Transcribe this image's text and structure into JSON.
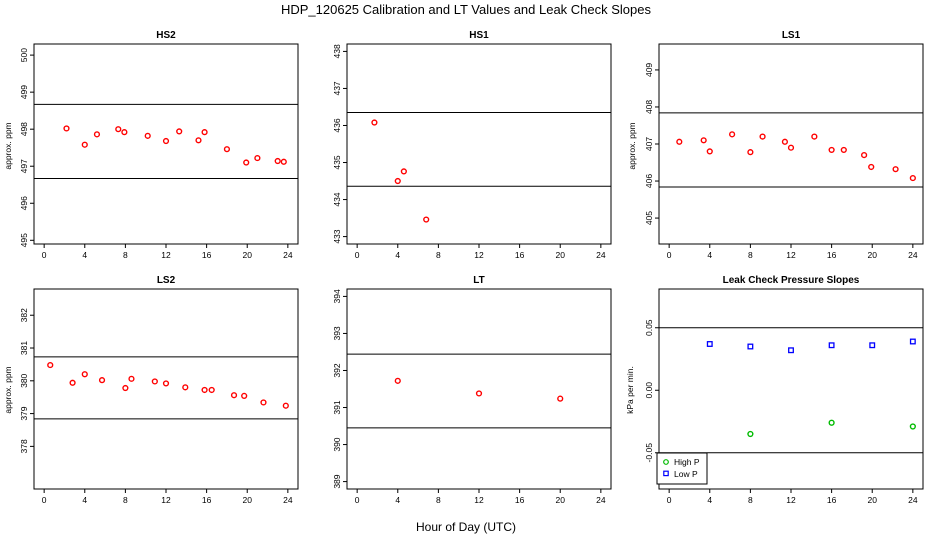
{
  "figure": {
    "title": "HDP_120625  Calibration and LT Values and Leak Check Slopes",
    "xlabel": "Hour of Day (UTC)"
  },
  "colors": {
    "cal": "#ff0000",
    "high": "#00bb00",
    "low": "#0000ff",
    "axis": "#000000"
  },
  "chart_data": [
    {
      "type": "scatter",
      "title": "HS2",
      "ylabel": "approx. ppm",
      "xlim": [
        -1,
        25
      ],
      "ylim": [
        494.9,
        500.3
      ],
      "xticks": [
        "0",
        "4",
        "8",
        "12",
        "16",
        "20",
        "24"
      ],
      "yticks": [
        "495",
        "496",
        "497",
        "498",
        "499",
        "500"
      ],
      "hlines": [
        496.67,
        498.67
      ],
      "series": [
        {
          "name": "cal",
          "x": [
            2.2,
            4,
            5.2,
            7.3,
            7.9,
            10.2,
            12,
            13.3,
            15.2,
            15.8,
            18,
            19.9,
            21,
            23,
            23.6
          ],
          "y": [
            498.02,
            497.58,
            497.86,
            498,
            497.92,
            497.82,
            497.68,
            497.94,
            497.7,
            497.92,
            497.46,
            497.1,
            497.22,
            497.14,
            497.12
          ]
        }
      ]
    },
    {
      "type": "scatter",
      "title": "HS1",
      "ylabel": "",
      "xlim": [
        -1,
        25
      ],
      "ylim": [
        432.8,
        438.2
      ],
      "xticks": [
        "0",
        "4",
        "8",
        "12",
        "16",
        "20",
        "24"
      ],
      "yticks": [
        "433",
        "434",
        "435",
        "436",
        "437",
        "438"
      ],
      "hlines": [
        434.36,
        436.35
      ],
      "series": [
        {
          "name": "cal",
          "x": [
            1.7,
            4,
            4.6,
            6.8
          ],
          "y": [
            436.08,
            434.5,
            434.76,
            433.46
          ]
        }
      ]
    },
    {
      "type": "scatter",
      "title": "LS1",
      "ylabel": "approx. ppm",
      "xlim": [
        -1,
        25
      ],
      "ylim": [
        404.3,
        409.7
      ],
      "xticks": [
        "0",
        "4",
        "8",
        "12",
        "16",
        "20",
        "24"
      ],
      "yticks": [
        "405",
        "406",
        "407",
        "408",
        "409"
      ],
      "hlines": [
        405.84,
        407.84
      ],
      "series": [
        {
          "name": "cal",
          "x": [
            1,
            3.4,
            4,
            6.2,
            8,
            9.2,
            11.4,
            12,
            14.3,
            16,
            17.2,
            19.2,
            19.9,
            22.3,
            24
          ],
          "y": [
            407.06,
            407.1,
            406.8,
            407.26,
            406.78,
            407.2,
            407.06,
            406.9,
            407.2,
            406.84,
            406.84,
            406.7,
            406.38,
            406.32,
            406.08
          ]
        }
      ]
    },
    {
      "type": "scatter",
      "title": "LS2",
      "ylabel": "approx. ppm",
      "xlim": [
        -1,
        25
      ],
      "ylim": [
        376.7,
        382.8
      ],
      "xticks": [
        "0",
        "4",
        "8",
        "12",
        "16",
        "20",
        "24"
      ],
      "yticks": [
        "378",
        "379",
        "380",
        "381",
        "382"
      ],
      "hlines": [
        378.84,
        380.73
      ],
      "series": [
        {
          "name": "cal",
          "x": [
            0.6,
            2.8,
            4,
            5.7,
            8,
            8.6,
            10.9,
            12,
            13.9,
            15.8,
            16.5,
            18.7,
            19.7,
            21.6,
            23.8
          ],
          "y": [
            380.48,
            379.94,
            380.2,
            380.02,
            379.78,
            380.06,
            379.98,
            379.92,
            379.8,
            379.72,
            379.72,
            379.56,
            379.54,
            379.34,
            379.24
          ]
        }
      ]
    },
    {
      "type": "scatter",
      "title": "LT",
      "ylabel": "",
      "xlim": [
        -1,
        25
      ],
      "ylim": [
        388.8,
        394.2
      ],
      "xticks": [
        "0",
        "4",
        "8",
        "12",
        "16",
        "20",
        "24"
      ],
      "yticks": [
        "389",
        "390",
        "391",
        "392",
        "393",
        "394"
      ],
      "hlines": [
        390.45,
        392.44
      ],
      "series": [
        {
          "name": "cal",
          "x": [
            4,
            12,
            20
          ],
          "y": [
            391.72,
            391.38,
            391.24
          ]
        }
      ]
    },
    {
      "type": "scatter",
      "title": "Leak Check Pressure Slopes",
      "ylabel": "kPa per min.",
      "xlim": [
        -1,
        25
      ],
      "ylim": [
        -0.079,
        0.081
      ],
      "xticks": [
        "0",
        "4",
        "8",
        "12",
        "16",
        "20",
        "24"
      ],
      "yticks": [
        "-0.05",
        "0.00",
        "0.05"
      ],
      "hlines": [
        -0.05,
        0.05
      ],
      "legend": {
        "position": "bottom-left",
        "entries": [
          "High P",
          "Low P"
        ]
      },
      "series": [
        {
          "name": "High P",
          "marker": "circle",
          "x": [
            8,
            16,
            24
          ],
          "y": [
            -0.035,
            -0.026,
            -0.029
          ]
        },
        {
          "name": "Low P",
          "marker": "square",
          "x": [
            4,
            8,
            12,
            16,
            20,
            24
          ],
          "y": [
            0.037,
            0.035,
            0.032,
            0.036,
            0.036,
            0.039
          ]
        }
      ]
    }
  ]
}
